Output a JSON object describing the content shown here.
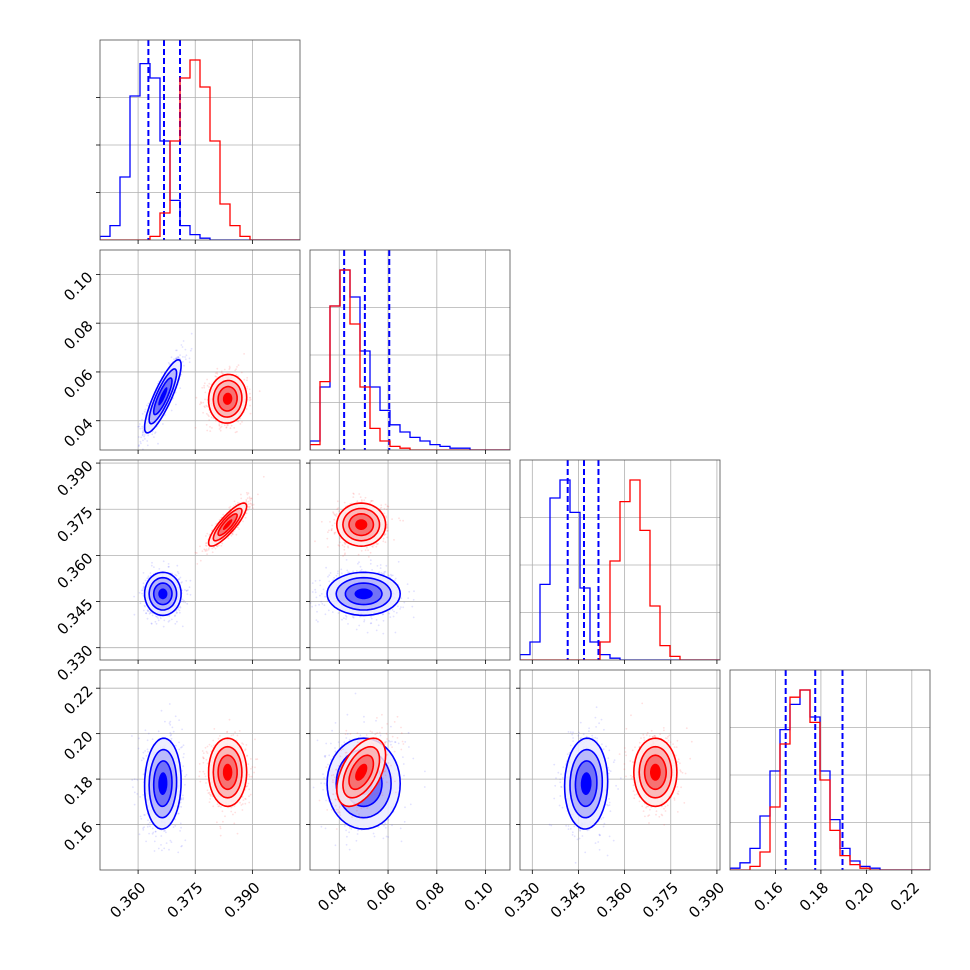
{
  "chart_data": {
    "type": "corner",
    "grid": true,
    "colors": {
      "series_a": "#0000ff",
      "series_b": "#ff0000"
    },
    "parameters": [
      {
        "range": [
          0.35,
          0.4025
        ],
        "ticks": [
          0.36,
          0.375,
          0.39
        ],
        "tick_labels": [
          "0.360",
          "0.375",
          "0.390"
        ]
      },
      {
        "range": [
          0.028,
          0.11
        ],
        "ticks": [
          0.04,
          0.06,
          0.08,
          0.1
        ],
        "tick_labels": [
          "0.04",
          "0.06",
          "0.08",
          "0.10"
        ]
      },
      {
        "range": [
          0.326,
          0.391
        ],
        "ticks": [
          0.33,
          0.345,
          0.36,
          0.375,
          0.39
        ],
        "tick_labels": [
          "0.330",
          "0.345",
          "0.360",
          "0.375",
          "0.390"
        ]
      },
      {
        "range": [
          0.14,
          0.228
        ],
        "ticks": [
          0.16,
          0.18,
          0.2,
          0.22
        ],
        "tick_labels": [
          "0.16",
          "0.18",
          "0.20",
          "0.22"
        ]
      }
    ],
    "series": [
      {
        "color": "#0000ff",
        "mean": [
          0.3665,
          0.05,
          0.3475,
          0.178
        ],
        "sd": [
          0.0024,
          0.0075,
          0.0035,
          0.01
        ],
        "corr": [
          [
            0,
            1,
            0.85
          ],
          [
            2,
            3,
            0.05
          ],
          [
            0,
            3,
            0.05
          ]
        ],
        "quantiles": [
          [
            0.3627,
            0.3668,
            0.371
          ],
          [
            0.042,
            0.0505,
            0.0605
          ],
          [
            0.3415,
            0.3468,
            0.3515
          ],
          [
            0.1645,
            0.1775,
            0.1895
          ]
        ],
        "hist": [
          [
            0.02,
            0.08,
            0.35,
            0.8,
            0.98,
            0.9,
            0.55,
            0.22,
            0.08,
            0.03,
            0.01,
            0,
            0,
            0,
            0,
            0,
            0,
            0,
            0,
            0
          ],
          [
            0.05,
            0.35,
            0.8,
            1.0,
            0.85,
            0.55,
            0.35,
            0.22,
            0.14,
            0.1,
            0.07,
            0.05,
            0.03,
            0.02,
            0.01,
            0.01,
            0,
            0,
            0,
            0
          ],
          [
            0.03,
            0.1,
            0.42,
            0.9,
            1.0,
            0.82,
            0.4,
            0.1,
            0.03,
            0.01,
            0,
            0,
            0,
            0,
            0,
            0,
            0,
            0,
            0,
            0
          ],
          [
            0.01,
            0.04,
            0.12,
            0.3,
            0.55,
            0.78,
            0.92,
            1.0,
            0.85,
            0.55,
            0.28,
            0.12,
            0.05,
            0.02,
            0.01,
            0,
            0,
            0,
            0,
            0
          ]
        ]
      },
      {
        "color": "#ff0000",
        "mean": [
          0.3835,
          0.049,
          0.37,
          0.183
        ],
        "sd": [
          0.0025,
          0.005,
          0.0035,
          0.0075
        ],
        "corr": [
          [
            0,
            2,
            0.85
          ],
          [
            1,
            3,
            0.5
          ],
          [
            0,
            1,
            0.05
          ]
        ],
        "quantiles": [],
        "hist": [
          [
            0,
            0,
            0,
            0,
            0,
            0.02,
            0.15,
            0.55,
            0.9,
            1.0,
            0.85,
            0.55,
            0.2,
            0.08,
            0.02,
            0,
            0,
            0,
            0,
            0
          ],
          [
            0.03,
            0.38,
            0.8,
            1.0,
            0.7,
            0.35,
            0.12,
            0.05,
            0.02,
            0.01,
            0,
            0,
            0,
            0,
            0,
            0,
            0,
            0,
            0,
            0
          ],
          [
            0,
            0,
            0,
            0,
            0,
            0,
            0,
            0,
            0.1,
            0.55,
            0.88,
            1.0,
            0.72,
            0.3,
            0.08,
            0.02,
            0,
            0,
            0,
            0
          ],
          [
            0,
            0,
            0.02,
            0.1,
            0.35,
            0.7,
            0.96,
            1.0,
            0.82,
            0.5,
            0.22,
            0.08,
            0.03,
            0.01,
            0,
            0,
            0,
            0,
            0,
            0
          ]
        ]
      }
    ]
  }
}
